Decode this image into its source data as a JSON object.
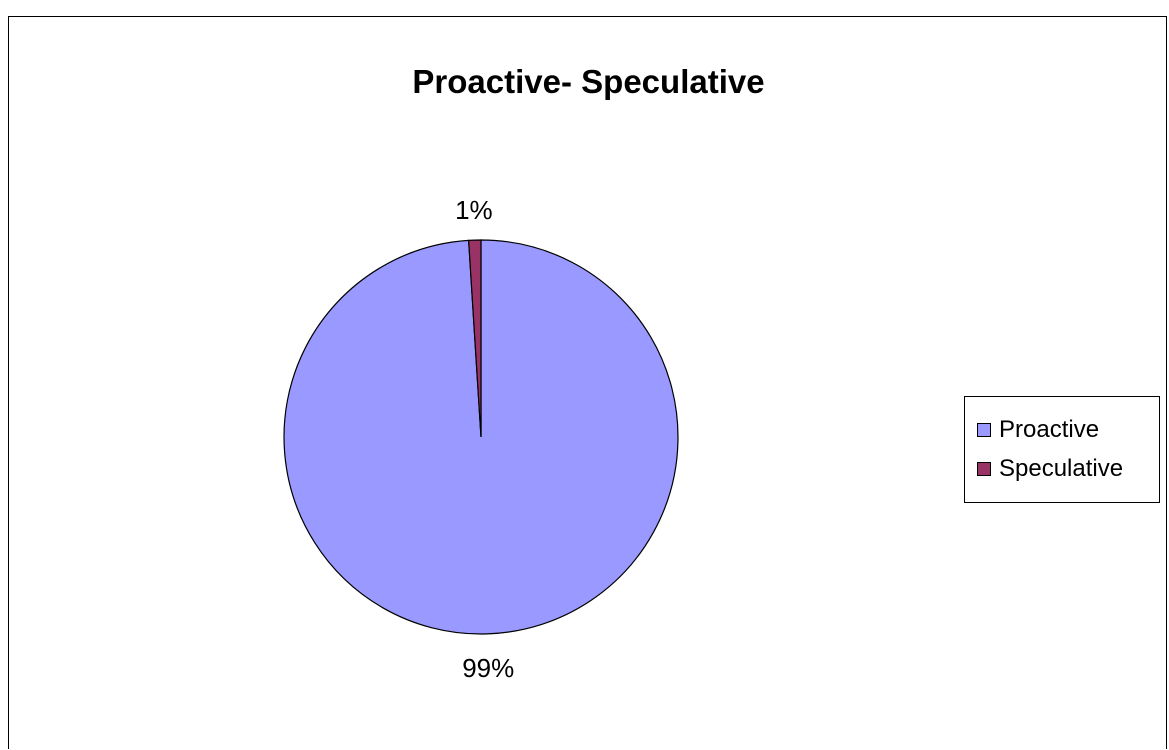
{
  "chart_data": {
    "type": "pie",
    "title": "Proactive- Speculative",
    "slices": [
      {
        "name": "Proactive",
        "value": 99,
        "label": "99%",
        "color": "#9999FF"
      },
      {
        "name": "Speculative",
        "value": 1,
        "label": "1%",
        "color": "#993366"
      }
    ],
    "legend_position": "right"
  },
  "legend": {
    "items": [
      {
        "label": "Proactive",
        "color": "#9999FF"
      },
      {
        "label": "Speculative",
        "color": "#993366"
      }
    ]
  }
}
